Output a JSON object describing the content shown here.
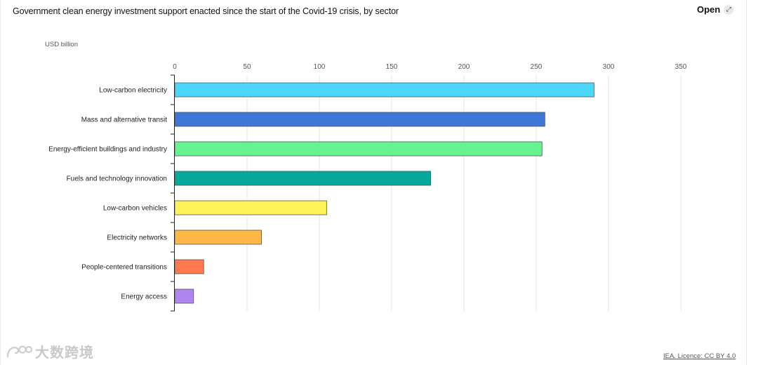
{
  "header": {
    "title": "Government clean energy investment support enacted since the start of the Covid-19 crisis, by sector",
    "open_label": "Open",
    "open_icon": "expand-arrows-icon"
  },
  "footer": {
    "licence": "IEA. Licence: CC BY 4.0",
    "watermark": "大数跨境",
    "watermark_icon": "brand-logo-icon"
  },
  "chart_data": {
    "type": "bar",
    "orientation": "horizontal",
    "unit_label": "USD billion",
    "xlim": [
      0,
      350
    ],
    "xticks": [
      0,
      50,
      100,
      150,
      200,
      250,
      300,
      350
    ],
    "grid": true,
    "categories": [
      "Low-carbon electricity",
      "Mass and alternative transit",
      "Energy-efficient buildings and industry",
      "Fuels and technology innovation",
      "Low-carbon vehicles",
      "Electricity networks",
      "People-centered transitions",
      "Energy access"
    ],
    "values": [
      290,
      256,
      254,
      177,
      105,
      60,
      20,
      13
    ],
    "colors": [
      "#4dd6fb",
      "#3f77d7",
      "#67f392",
      "#06a99a",
      "#fdf358",
      "#fdb848",
      "#ff7a4e",
      "#b086ee"
    ]
  }
}
